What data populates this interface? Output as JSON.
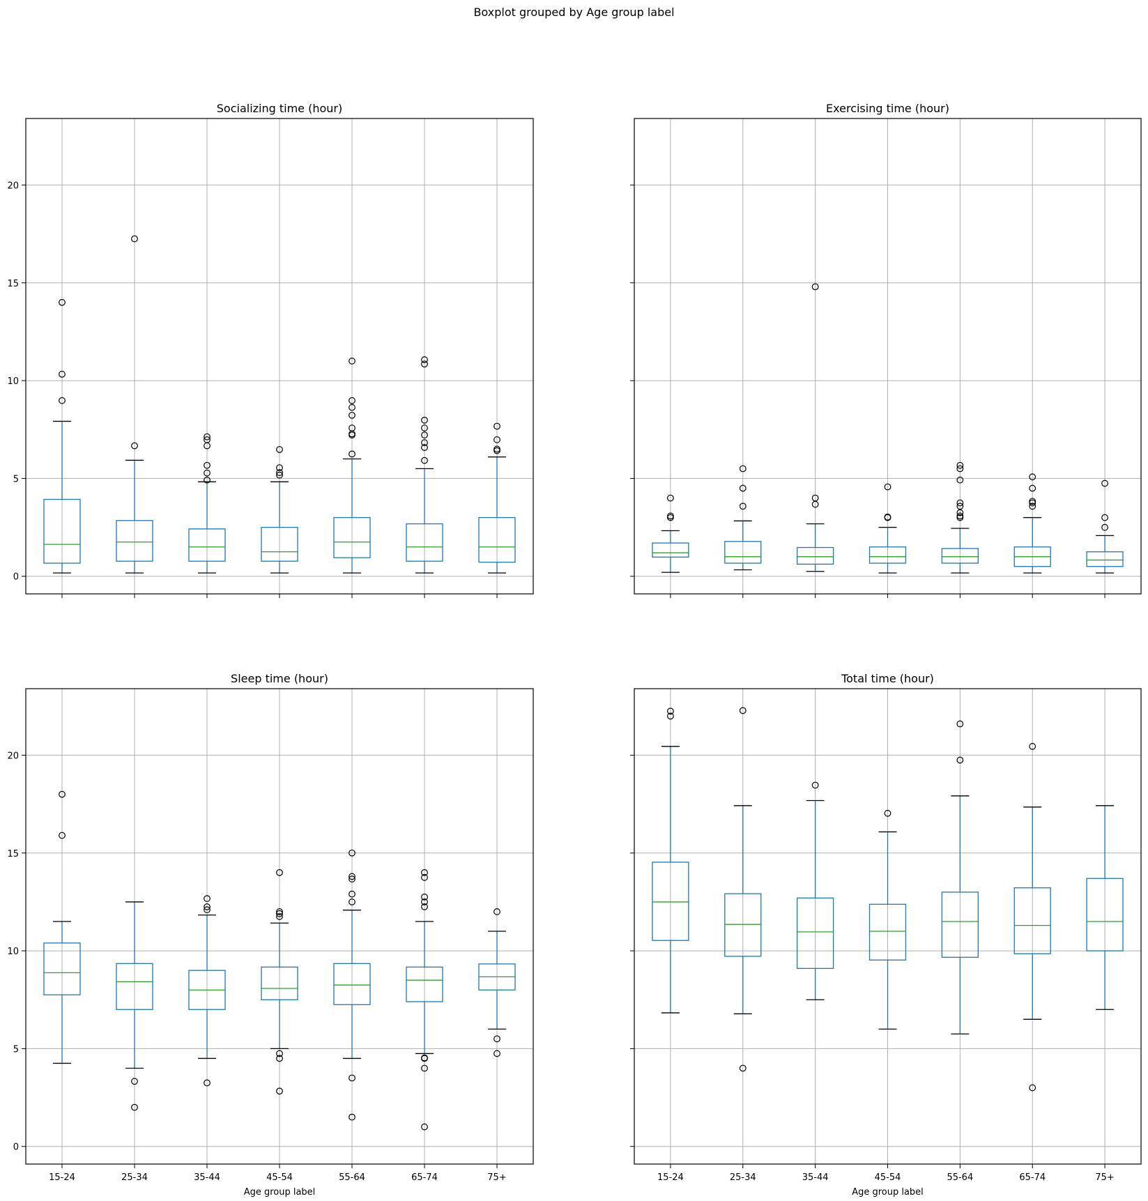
{
  "chart_data": {
    "type": "boxplot",
    "suptitle": "Boxplot grouped by Age group label",
    "categories": [
      "15-24",
      "25-34",
      "35-44",
      "45-54",
      "55-64",
      "65-74",
      "75+"
    ],
    "xlabel": "Age group label",
    "ylim": [
      -0.9,
      23.4
    ],
    "yticks": [
      0,
      5,
      10,
      15,
      20
    ],
    "grid": true,
    "sharey": true,
    "colors": {
      "box": "#1f77b4",
      "median": "#2ca02c",
      "whisker_cap": "#000000",
      "flier": "#000000",
      "grid": "#b0b0b0"
    },
    "panels": [
      {
        "title": "Socializing time (hour)",
        "boxes": [
          {
            "category": "15-24",
            "whislo": 0.17,
            "q1": 0.67,
            "median": 1.63,
            "q3": 3.93,
            "whishi": 7.92,
            "fliers": [
              8.98,
              10.33,
              14.0
            ]
          },
          {
            "category": "25-34",
            "whislo": 0.17,
            "q1": 0.77,
            "median": 1.75,
            "q3": 2.85,
            "whishi": 5.93,
            "fliers": [
              6.67,
              17.25
            ]
          },
          {
            "category": "35-44",
            "whislo": 0.17,
            "q1": 0.77,
            "median": 1.5,
            "q3": 2.42,
            "whishi": 4.83,
            "fliers": [
              4.92,
              5.28,
              5.67,
              6.67,
              6.98,
              7.13
            ]
          },
          {
            "category": "45-54",
            "whislo": 0.17,
            "q1": 0.77,
            "median": 1.25,
            "q3": 2.5,
            "whishi": 4.83,
            "fliers": [
              5.17,
              5.3,
              5.55,
              6.48
            ]
          },
          {
            "category": "55-64",
            "whislo": 0.17,
            "q1": 0.95,
            "median": 1.75,
            "q3": 3.0,
            "whishi": 6.0,
            "fliers": [
              6.25,
              7.22,
              7.28,
              7.58,
              8.23,
              8.63,
              8.98,
              11.0
            ]
          },
          {
            "category": "65-74",
            "whislo": 0.17,
            "q1": 0.77,
            "median": 1.5,
            "q3": 2.68,
            "whishi": 5.5,
            "fliers": [
              5.92,
              6.58,
              6.83,
              7.22,
              7.58,
              7.98,
              10.85,
              11.07
            ]
          },
          {
            "category": "75+",
            "whislo": 0.17,
            "q1": 0.72,
            "median": 1.5,
            "q3": 3.0,
            "whishi": 6.1,
            "fliers": [
              6.42,
              6.5,
              6.98,
              7.67
            ]
          }
        ]
      },
      {
        "title": "Exercising time (hour)",
        "boxes": [
          {
            "category": "15-24",
            "whislo": 0.2,
            "q1": 0.98,
            "median": 1.2,
            "q3": 1.7,
            "whishi": 2.33,
            "fliers": [
              3.0,
              3.08,
              4.0
            ]
          },
          {
            "category": "25-34",
            "whislo": 0.33,
            "q1": 0.67,
            "median": 1.0,
            "q3": 1.78,
            "whishi": 2.83,
            "fliers": [
              3.58,
              4.5,
              5.5
            ]
          },
          {
            "category": "35-44",
            "whislo": 0.25,
            "q1": 0.62,
            "median": 1.0,
            "q3": 1.47,
            "whishi": 2.68,
            "fliers": [
              3.68,
              4.0,
              14.8
            ]
          },
          {
            "category": "45-54",
            "whislo": 0.17,
            "q1": 0.67,
            "median": 1.0,
            "q3": 1.5,
            "whishi": 2.5,
            "fliers": [
              3.0,
              3.03,
              4.57
            ]
          },
          {
            "category": "55-64",
            "whislo": 0.17,
            "q1": 0.67,
            "median": 1.0,
            "q3": 1.42,
            "whishi": 2.45,
            "fliers": [
              3.0,
              3.08,
              3.25,
              3.58,
              3.75,
              4.92,
              5.5,
              5.67
            ]
          },
          {
            "category": "65-74",
            "whislo": 0.17,
            "q1": 0.5,
            "median": 1.0,
            "q3": 1.5,
            "whishi": 3.0,
            "fliers": [
              3.58,
              3.75,
              3.83,
              4.5,
              5.08
            ]
          },
          {
            "category": "75+",
            "whislo": 0.17,
            "q1": 0.5,
            "median": 0.83,
            "q3": 1.25,
            "whishi": 2.08,
            "fliers": [
              2.5,
              3.0,
              4.75
            ]
          }
        ]
      },
      {
        "title": "Sleep time (hour)",
        "boxes": [
          {
            "category": "15-24",
            "whislo": 4.25,
            "q1": 7.75,
            "median": 8.88,
            "q3": 10.4,
            "whishi": 11.5,
            "fliers": [
              15.9,
              18.0
            ]
          },
          {
            "category": "25-34",
            "whislo": 4.0,
            "q1": 7.0,
            "median": 8.42,
            "q3": 9.35,
            "whishi": 12.5,
            "fliers": [
              2.0,
              3.33
            ]
          },
          {
            "category": "35-44",
            "whislo": 4.5,
            "q1": 7.0,
            "median": 8.0,
            "q3": 9.0,
            "whishi": 11.83,
            "fliers": [
              3.25,
              12.1,
              12.25,
              12.67
            ]
          },
          {
            "category": "45-54",
            "whislo": 5.0,
            "q1": 7.5,
            "median": 8.08,
            "q3": 9.17,
            "whishi": 11.42,
            "fliers": [
              2.83,
              4.5,
              4.75,
              11.75,
              11.9,
              12.0,
              14.0
            ]
          },
          {
            "category": "55-64",
            "whislo": 4.5,
            "q1": 7.25,
            "median": 8.25,
            "q3": 9.35,
            "whishi": 12.08,
            "fliers": [
              1.5,
              3.5,
              12.5,
              12.9,
              13.67,
              13.8,
              15.0
            ]
          },
          {
            "category": "65-74",
            "whislo": 4.75,
            "q1": 7.4,
            "median": 8.5,
            "q3": 9.17,
            "whishi": 11.5,
            "fliers": [
              1.0,
              4.0,
              4.5,
              4.53,
              12.25,
              12.5,
              12.75,
              13.75,
              14.0
            ]
          },
          {
            "category": "75+",
            "whislo": 6.0,
            "q1": 8.0,
            "median": 8.67,
            "q3": 9.33,
            "whishi": 11.0,
            "fliers": [
              4.75,
              5.5,
              12.0
            ]
          }
        ]
      },
      {
        "title": "Total time (hour)",
        "boxes": [
          {
            "category": "15-24",
            "whislo": 6.83,
            "q1": 10.53,
            "median": 12.5,
            "q3": 14.53,
            "whishi": 20.45,
            "fliers": [
              22.0,
              22.25
            ]
          },
          {
            "category": "25-34",
            "whislo": 6.78,
            "q1": 9.72,
            "median": 11.35,
            "q3": 12.92,
            "whishi": 17.42,
            "fliers": [
              4.0,
              22.28
            ]
          },
          {
            "category": "35-44",
            "whislo": 7.5,
            "q1": 9.1,
            "median": 10.97,
            "q3": 12.7,
            "whishi": 17.68,
            "fliers": [
              18.47
            ]
          },
          {
            "category": "45-54",
            "whislo": 6.0,
            "q1": 9.53,
            "median": 11.0,
            "q3": 12.38,
            "whishi": 16.08,
            "fliers": [
              17.03
            ]
          },
          {
            "category": "55-64",
            "whislo": 5.75,
            "q1": 9.67,
            "median": 11.5,
            "q3": 13.0,
            "whishi": 17.92,
            "fliers": [
              19.75,
              21.6
            ]
          },
          {
            "category": "65-74",
            "whislo": 6.5,
            "q1": 9.85,
            "median": 11.3,
            "q3": 13.22,
            "whishi": 17.35,
            "fliers": [
              3.0,
              20.45
            ]
          },
          {
            "category": "75+",
            "whislo": 7.0,
            "q1": 10.0,
            "median": 11.5,
            "q3": 13.7,
            "whishi": 17.42,
            "fliers": []
          }
        ]
      }
    ]
  }
}
